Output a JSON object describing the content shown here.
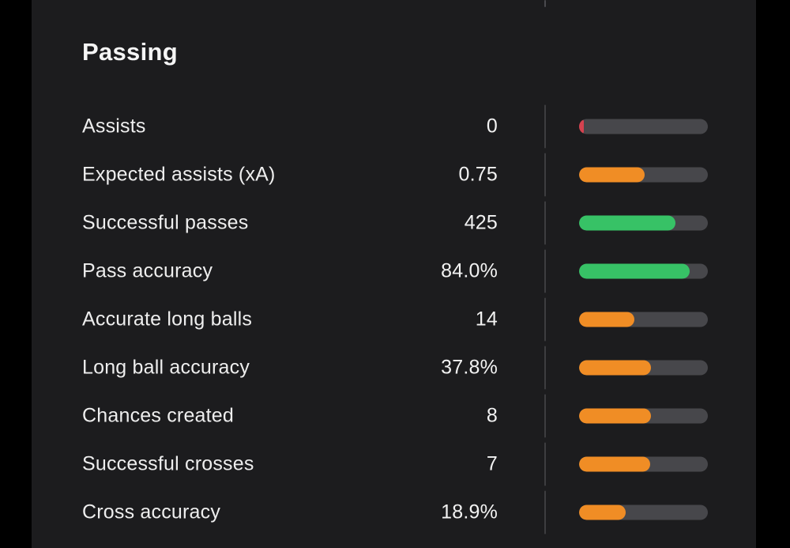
{
  "page": {
    "background": "#000000",
    "panel_background": "#1c1c1e"
  },
  "colors": {
    "red": "#d5424f",
    "orange": "#f08d25",
    "green": "#37c266",
    "track": "#47474b",
    "divider": "#3d3d40",
    "text": "#f2f2f2"
  },
  "section": {
    "title": "Passing",
    "stats": [
      {
        "label": "Assists",
        "value": "0",
        "bar_percent": 3.5,
        "bar_color": "red"
      },
      {
        "label": "Expected assists (xA)",
        "value": "0.75",
        "bar_percent": 51,
        "bar_color": "orange"
      },
      {
        "label": "Successful passes",
        "value": "425",
        "bar_percent": 75,
        "bar_color": "green"
      },
      {
        "label": "Pass accuracy",
        "value": "84.0%",
        "bar_percent": 86,
        "bar_color": "green"
      },
      {
        "label": "Accurate long balls",
        "value": "14",
        "bar_percent": 43,
        "bar_color": "orange"
      },
      {
        "label": "Long ball accuracy",
        "value": "37.8%",
        "bar_percent": 56,
        "bar_color": "orange"
      },
      {
        "label": "Chances created",
        "value": "8",
        "bar_percent": 56,
        "bar_color": "orange"
      },
      {
        "label": "Successful crosses",
        "value": "7",
        "bar_percent": 55,
        "bar_color": "orange"
      },
      {
        "label": "Cross accuracy",
        "value": "18.9%",
        "bar_percent": 36,
        "bar_color": "orange"
      }
    ]
  }
}
